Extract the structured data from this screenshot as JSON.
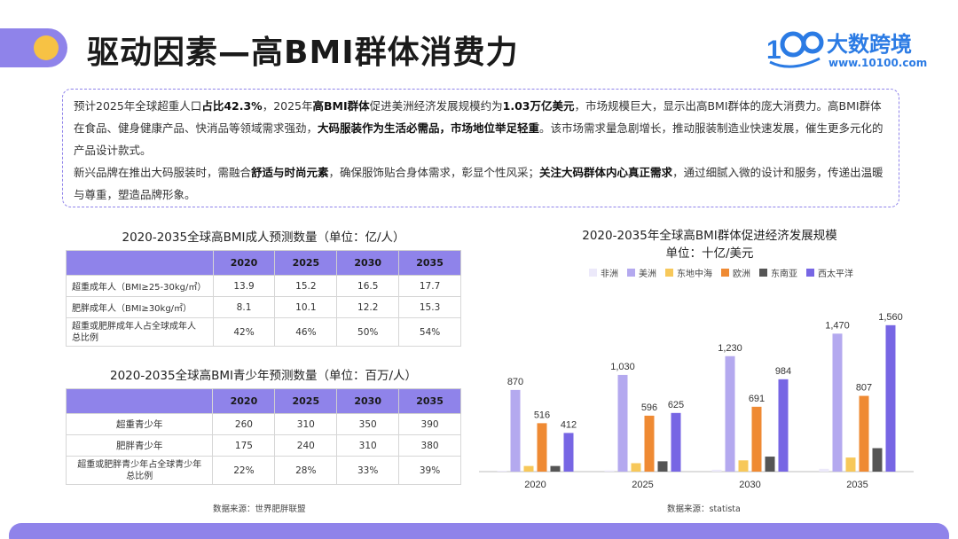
{
  "page": {
    "title": "驱动因素—高BMI群体消费力"
  },
  "brand": {
    "name": "大数跨境",
    "url": "www.10100.com",
    "color": "#2b7be4",
    "accent": "#8f83ea",
    "dot_color": "#f7c244"
  },
  "summary": {
    "p1_s1": "预计2025年全球超重人口",
    "p1_b1": "占比42.3%",
    "p1_s2": "，2025年",
    "p1_b2": "高BMI群体",
    "p1_s3": "促进美洲经济发展规模约为",
    "p1_b3": "1.03万亿美元",
    "p1_s4": "，市场规模巨大，显示出高BMI群体的庞大消费力。高BMI群体在食品、健身健康产品、快消品等领域需求强劲，",
    "p1_b4": "大码服装作为生活必需品，市场地位举足轻重",
    "p1_s5": "。该市场需求量急剧增长，推动服装制造业快速发展，催生更多元化的产品设计款式。",
    "p2_s1": "新兴品牌在推出大码服装时，需融合",
    "p2_b1": "舒适与时尚元素",
    "p2_s2": "，确保服饰贴合身体需求，彰显个性风采；",
    "p2_b2": "关注大码群体内心真正需求",
    "p2_s3": "，通过细腻入微的设计和服务，传递出温暖与尊重，塑造品牌形象。"
  },
  "adult_table": {
    "title": "2020-2035全球高BMI成人预测数量（单位：亿/人）",
    "columns": [
      "2020",
      "2025",
      "2030",
      "2035"
    ],
    "rows": [
      {
        "label": "超重成年人（BMI≥25-30kg/㎡）",
        "values": [
          "13.9",
          "15.2",
          "16.5",
          "17.7"
        ]
      },
      {
        "label": "肥胖成年人（BMI≥30kg/㎡）",
        "values": [
          "8.1",
          "10.1",
          "12.2",
          "15.3"
        ]
      },
      {
        "label1": "超重或肥胖成年人占全球成年人",
        "label2": "总比例",
        "values": [
          "42%",
          "46%",
          "50%",
          "54%"
        ]
      }
    ]
  },
  "youth_table": {
    "title": "2020-2035全球高BMI青少年预测数量（单位：百万/人）",
    "columns": [
      "2020",
      "2025",
      "2030",
      "2035"
    ],
    "rows": [
      {
        "label": "超重青少年",
        "values": [
          "260",
          "310",
          "350",
          "390"
        ]
      },
      {
        "label": "肥胖青少年",
        "values": [
          "175",
          "240",
          "310",
          "380"
        ]
      },
      {
        "label1": "超重或肥胖青少年占全球青少年",
        "label2": "总比例",
        "values": [
          "22%",
          "28%",
          "33%",
          "39%"
        ]
      }
    ]
  },
  "left_source": "数据来源：世界肥胖联盟",
  "right_source": "数据来源：statista",
  "chart_data": {
    "type": "bar",
    "title": "2020-2035年全球高BMI群体促进经济发展规模",
    "subtitle": "单位：十亿/美元",
    "categories": [
      "2020",
      "2025",
      "2030",
      "2035"
    ],
    "series": [
      {
        "name": "非洲",
        "color": "#ece9fa",
        "values": [
          5,
          12,
          20,
          30
        ]
      },
      {
        "name": "美洲",
        "color": "#b4a9ef",
        "values": [
          870,
          1030,
          1230,
          1470
        ]
      },
      {
        "name": "东地中海",
        "color": "#f7c85a",
        "values": [
          60,
          90,
          120,
          150
        ]
      },
      {
        "name": "欧洲",
        "color": "#ef8a33",
        "values": [
          516,
          596,
          691,
          807
        ]
      },
      {
        "name": "东南亚",
        "color": "#555555",
        "values": [
          60,
          110,
          160,
          250
        ]
      },
      {
        "name": "西太平洋",
        "color": "#7766e4",
        "values": [
          412,
          625,
          984,
          1560
        ]
      }
    ],
    "data_labels": {
      "美洲": [
        "870",
        "1,030",
        "1,230",
        "1,470"
      ],
      "欧洲": [
        "516",
        "596",
        "691",
        "807"
      ],
      "西太平洋": [
        "412",
        "625",
        "984",
        "1,560"
      ]
    },
    "ylim": [
      0,
      1700
    ],
    "grid": false,
    "legend_position": "top"
  }
}
